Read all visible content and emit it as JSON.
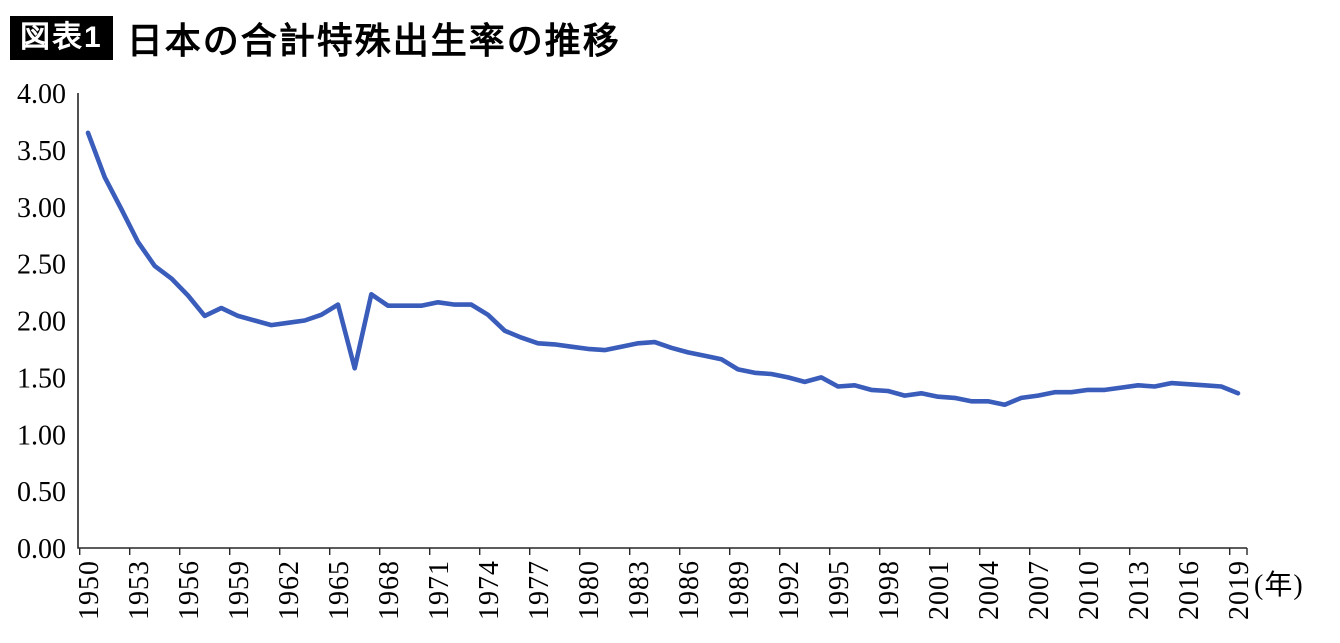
{
  "header": {
    "badge": "図表1",
    "title": "日本の合計特殊出生率の推移"
  },
  "chart_data": {
    "type": "line",
    "title": "日本の合計特殊出生率の推移",
    "xlabel": "(年)",
    "ylabel": "",
    "ylim": [
      0,
      4.0
    ],
    "grid": false,
    "legend": "none",
    "line_color": "#3a5cba",
    "axis_color": "#262626",
    "text_color": "#000000",
    "x_unit_label": "(年)",
    "ytick_labels": [
      "0.00",
      "0.50",
      "1.00",
      "1.50",
      "2.00",
      "2.50",
      "3.00",
      "3.50",
      "4.00"
    ],
    "xtick_labels": [
      "1950",
      "1953",
      "1956",
      "1959",
      "1962",
      "1965",
      "1968",
      "1971",
      "1974",
      "1977",
      "1980",
      "1983",
      "1986",
      "1989",
      "1992",
      "1995",
      "1998",
      "2001",
      "2004",
      "2007",
      "2010",
      "2013",
      "2016",
      "2019"
    ],
    "x": [
      1950,
      1951,
      1952,
      1953,
      1954,
      1955,
      1956,
      1957,
      1958,
      1959,
      1960,
      1961,
      1962,
      1963,
      1964,
      1965,
      1966,
      1967,
      1968,
      1969,
      1970,
      1971,
      1972,
      1973,
      1974,
      1975,
      1976,
      1977,
      1978,
      1979,
      1980,
      1981,
      1982,
      1983,
      1984,
      1985,
      1986,
      1987,
      1988,
      1989,
      1990,
      1991,
      1992,
      1993,
      1994,
      1995,
      1996,
      1997,
      1998,
      1999,
      2000,
      2001,
      2002,
      2003,
      2004,
      2005,
      2006,
      2007,
      2008,
      2009,
      2010,
      2011,
      2012,
      2013,
      2014,
      2015,
      2016,
      2017,
      2018,
      2019
    ],
    "values": [
      3.65,
      3.26,
      2.98,
      2.69,
      2.48,
      2.37,
      2.22,
      2.04,
      2.11,
      2.04,
      2.0,
      1.96,
      1.98,
      2.0,
      2.05,
      2.14,
      1.58,
      2.23,
      2.13,
      2.13,
      2.13,
      2.16,
      2.14,
      2.14,
      2.05,
      1.91,
      1.85,
      1.8,
      1.79,
      1.77,
      1.75,
      1.74,
      1.77,
      1.8,
      1.81,
      1.76,
      1.72,
      1.69,
      1.66,
      1.57,
      1.54,
      1.53,
      1.5,
      1.46,
      1.5,
      1.42,
      1.43,
      1.39,
      1.38,
      1.34,
      1.36,
      1.33,
      1.32,
      1.29,
      1.29,
      1.26,
      1.32,
      1.34,
      1.37,
      1.37,
      1.39,
      1.39,
      1.41,
      1.43,
      1.42,
      1.45,
      1.44,
      1.43,
      1.42,
      1.36
    ]
  }
}
